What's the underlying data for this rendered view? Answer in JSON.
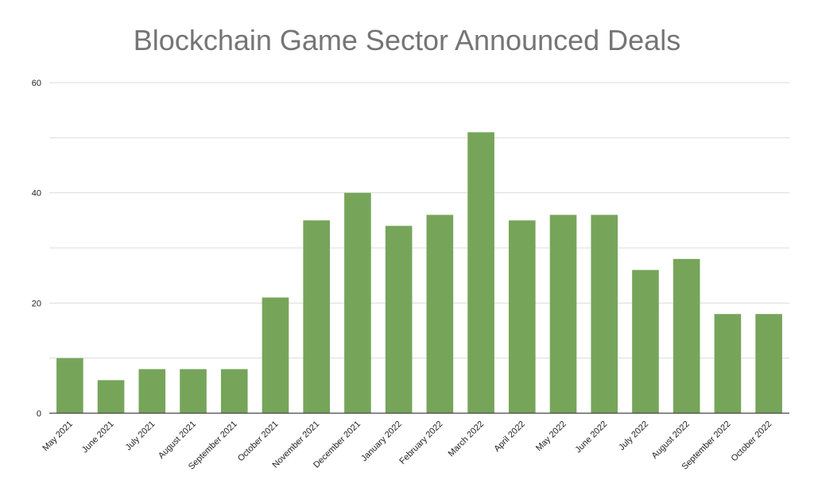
{
  "colors": {
    "bar": "#76a55a",
    "grid": "#dcdcdc",
    "axis": "#444444",
    "title": "#757575"
  },
  "chart_data": {
    "type": "bar",
    "title": "Blockchain Game Sector Announced Deals",
    "xlabel": "",
    "ylabel": "",
    "ylim": [
      0,
      60
    ],
    "yticks": [
      0,
      20,
      40,
      60
    ],
    "grid": true,
    "categories": [
      "May 2021",
      "June 2021",
      "July 2021",
      "August 2021",
      "September 2021",
      "October 2021",
      "November 2021",
      "December 2021",
      "January 2022",
      "February 2022",
      "March 2022",
      "April 2022",
      "May 2022",
      "June 2022",
      "July 2022",
      "August 2022",
      "September 2022",
      "October 2022"
    ],
    "values": [
      10,
      6,
      8,
      8,
      8,
      21,
      35,
      40,
      34,
      36,
      51,
      35,
      36,
      36,
      26,
      28,
      18,
      18
    ]
  }
}
